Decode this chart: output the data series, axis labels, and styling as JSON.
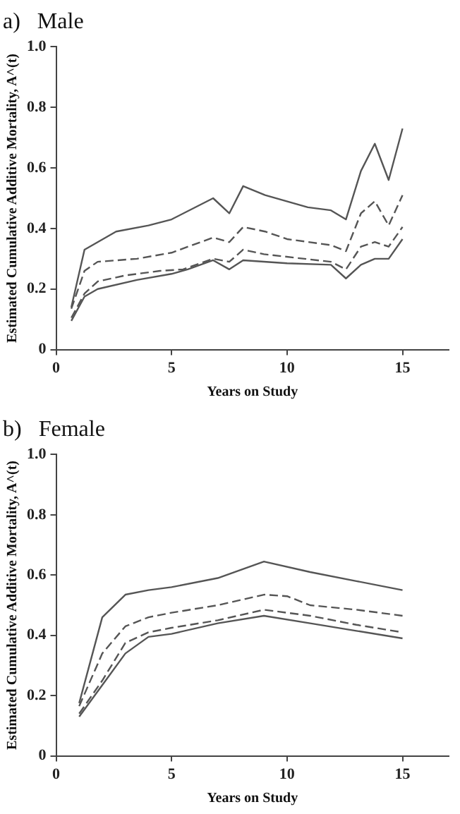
{
  "chart_data": [
    {
      "type": "line",
      "title": "a)   Male",
      "xlabel": "Years on Study",
      "ylabel": "Estimated Cumulative Additive Mortality, A^(t)",
      "xlim": [
        0,
        17
      ],
      "xticks": [
        0,
        5,
        10,
        15
      ],
      "ylim": [
        0,
        1
      ],
      "yticks": [
        0,
        0.2,
        0.4,
        0.6,
        0.8,
        {
          "value": 1,
          "label": "1.0"
        }
      ],
      "grid": false,
      "legend": false,
      "marker": "none",
      "series": [
        {
          "color": "#555555",
          "line_style": "solid",
          "x": [
            0.66,
            1.23,
            2.6,
            4,
            5,
            6.8,
            7.5,
            8.1,
            9.05,
            10.9,
            11.9,
            12.55,
            13.2,
            13.8,
            14.4,
            15
          ],
          "values": [
            0.14,
            0.33,
            0.39,
            0.41,
            0.43,
            0.5,
            0.45,
            0.54,
            0.51,
            0.47,
            0.46,
            0.43,
            0.59,
            0.68,
            0.56,
            0.73
          ]
        },
        {
          "color": "#555555",
          "line_style": "dashed",
          "x": [
            0.66,
            1.23,
            1.8,
            3.5,
            5,
            6.8,
            7.5,
            8.1,
            9.05,
            10,
            11.9,
            12.55,
            13.2,
            13.8,
            14.4,
            15
          ],
          "values": [
            0.135,
            0.26,
            0.29,
            0.3,
            0.32,
            0.37,
            0.355,
            0.405,
            0.39,
            0.365,
            0.345,
            0.325,
            0.45,
            0.49,
            0.41,
            0.51
          ]
        },
        {
          "color": "#555555",
          "line_style": "dashed",
          "x": [
            0.66,
            1.23,
            1.8,
            3,
            4.5,
            5.5,
            6.8,
            7.5,
            8.1,
            9,
            11.9,
            12.55,
            13.2,
            13.8,
            14.4,
            15
          ],
          "values": [
            0.105,
            0.185,
            0.225,
            0.245,
            0.26,
            0.265,
            0.3,
            0.29,
            0.33,
            0.315,
            0.29,
            0.265,
            0.34,
            0.355,
            0.34,
            0.405
          ]
        },
        {
          "color": "#555555",
          "line_style": "solid",
          "x": [
            0.66,
            1.23,
            1.8,
            3.5,
            5,
            5.7,
            6.8,
            7.5,
            8.1,
            10,
            11.9,
            12.55,
            13.2,
            13.8,
            14.4,
            15
          ],
          "values": [
            0.095,
            0.175,
            0.2,
            0.23,
            0.25,
            0.265,
            0.295,
            0.265,
            0.295,
            0.285,
            0.28,
            0.235,
            0.28,
            0.3,
            0.3,
            0.365
          ]
        }
      ]
    },
    {
      "type": "line",
      "title": "b)   Female",
      "xlabel": "Years on Study",
      "ylabel": "Estimated Cumulative Additive Mortality, A^(t)",
      "xlim": [
        0,
        17
      ],
      "xticks": [
        0,
        5,
        10,
        15
      ],
      "ylim": [
        0,
        1
      ],
      "yticks": [
        0,
        0.2,
        0.4,
        0.6,
        0.8,
        {
          "value": 1,
          "label": "1.0"
        }
      ],
      "grid": false,
      "legend": false,
      "marker": "none",
      "series": [
        {
          "color": "#555555",
          "line_style": "solid",
          "x": [
            1,
            2,
            3,
            4,
            5,
            7,
            9,
            11,
            13,
            15
          ],
          "values": [
            0.175,
            0.46,
            0.535,
            0.55,
            0.56,
            0.59,
            0.645,
            0.61,
            0.58,
            0.55
          ]
        },
        {
          "color": "#555555",
          "line_style": "dashed",
          "x": [
            1,
            2,
            3,
            4,
            5,
            7,
            9,
            10,
            11,
            13,
            15
          ],
          "values": [
            0.165,
            0.34,
            0.43,
            0.46,
            0.475,
            0.5,
            0.535,
            0.53,
            0.5,
            0.485,
            0.465
          ]
        },
        {
          "color": "#555555",
          "line_style": "dashed",
          "x": [
            1,
            2,
            3,
            4,
            5,
            7,
            9,
            11,
            13,
            15
          ],
          "values": [
            0.14,
            0.25,
            0.375,
            0.41,
            0.425,
            0.45,
            0.485,
            0.465,
            0.435,
            0.41
          ]
        },
        {
          "color": "#555555",
          "line_style": "solid",
          "x": [
            1,
            2,
            3,
            4,
            5,
            7,
            9,
            11,
            13,
            15
          ],
          "values": [
            0.13,
            0.235,
            0.34,
            0.395,
            0.405,
            0.44,
            0.465,
            0.44,
            0.415,
            0.39
          ]
        }
      ]
    }
  ]
}
